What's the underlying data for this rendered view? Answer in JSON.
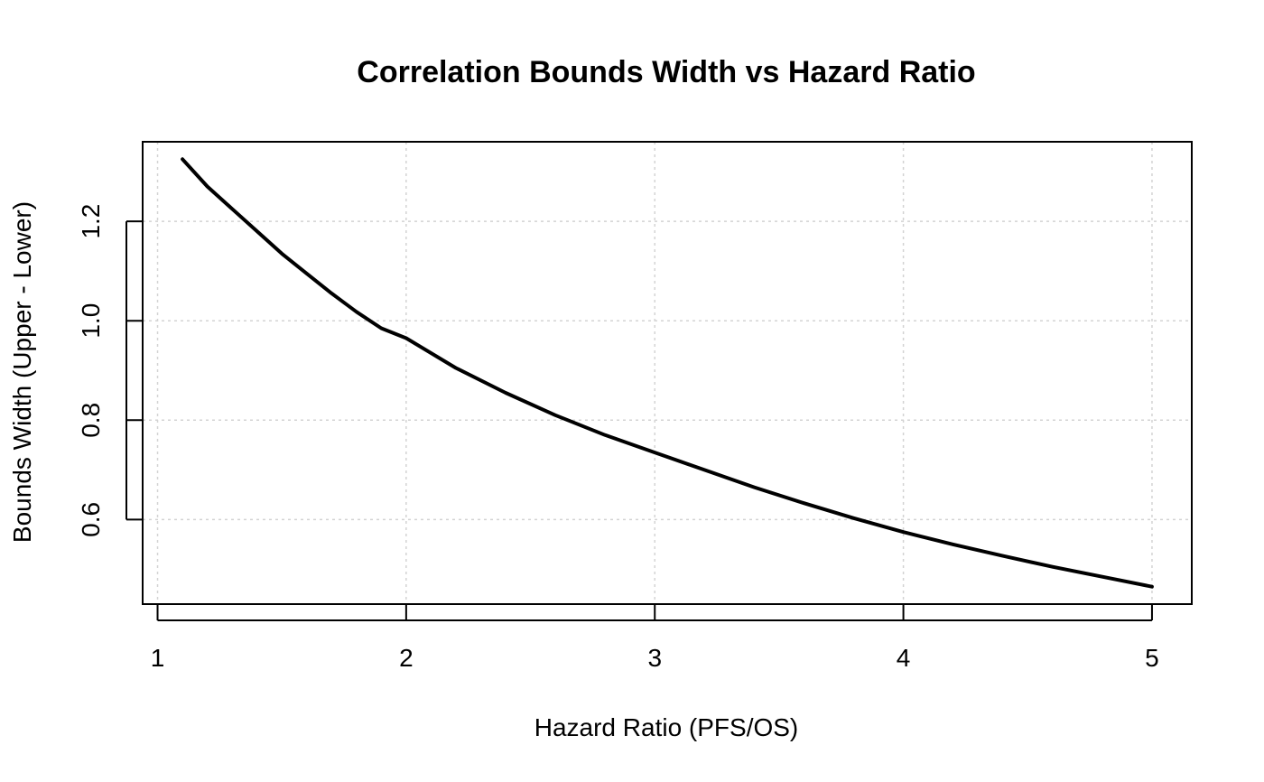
{
  "chart_data": {
    "type": "line",
    "title": "Correlation Bounds Width vs Hazard Ratio",
    "xlabel": "Hazard Ratio (PFS/OS)",
    "ylabel": "Bounds Width (Upper - Lower)",
    "xlim": [
      0.94,
      5.16
    ],
    "ylim": [
      0.43,
      1.36
    ],
    "xticks": [
      "1",
      "2",
      "3",
      "4",
      "5"
    ],
    "yticks": [
      "0.6",
      "0.8",
      "1.0",
      "1.2"
    ],
    "grid": true,
    "series": [
      {
        "color": "#000000",
        "x": [
          1.1,
          1.2,
          1.3,
          1.4,
          1.5,
          1.6,
          1.7,
          1.8,
          1.9,
          2.0,
          2.2,
          2.4,
          2.6,
          2.8,
          3.0,
          3.2,
          3.4,
          3.6,
          3.8,
          4.0,
          4.2,
          4.4,
          4.6,
          4.8,
          5.0
        ],
        "y": [
          1.325,
          1.27,
          1.225,
          1.18,
          1.135,
          1.095,
          1.055,
          1.018,
          0.985,
          0.965,
          0.905,
          0.855,
          0.81,
          0.77,
          0.735,
          0.7,
          0.665,
          0.633,
          0.603,
          0.575,
          0.55,
          0.527,
          0.505,
          0.485,
          0.465
        ]
      }
    ]
  }
}
